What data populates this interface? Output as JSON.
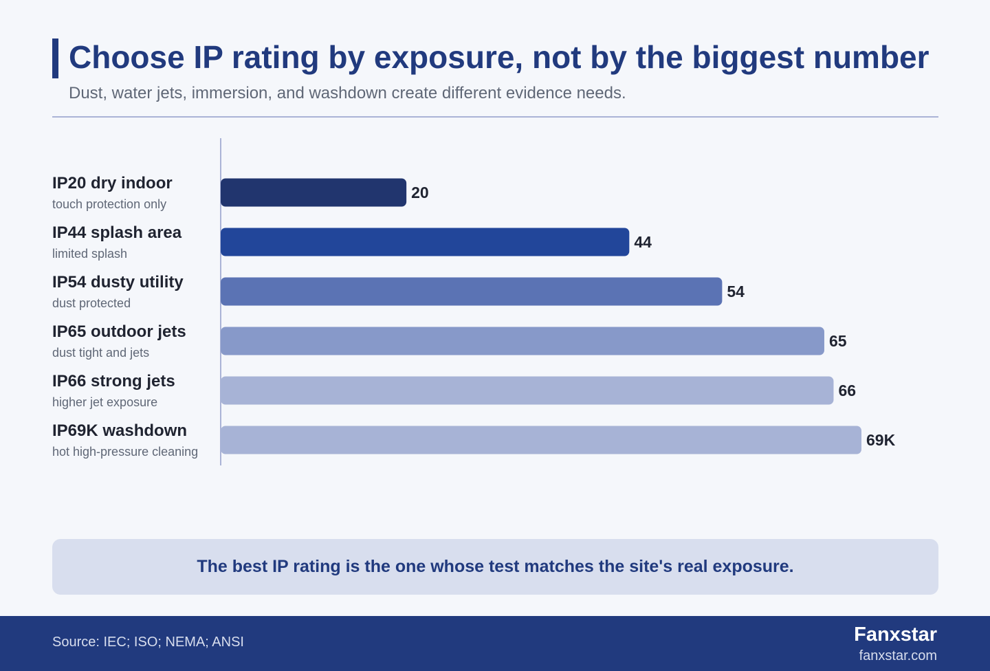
{
  "header": {
    "title": "Choose IP rating by exposure, not by the biggest number",
    "subtitle": "Dust, water jets, immersion, and washdown create different evidence needs."
  },
  "chart_data": {
    "type": "bar",
    "orientation": "horizontal",
    "categories": [
      "IP20 dry indoor",
      "IP44 splash area",
      "IP54 dusty utility",
      "IP65 outdoor jets",
      "IP66 strong jets",
      "IP69K washdown"
    ],
    "descriptions": [
      "touch protection only",
      "limited splash",
      "dust protected",
      "dust tight and jets",
      "higher jet exposure",
      "hot high-pressure cleaning"
    ],
    "values": [
      20,
      44,
      54,
      65,
      66,
      69
    ],
    "value_labels": [
      "20",
      "44",
      "54",
      "65",
      "66",
      "69K"
    ],
    "colors": [
      "#21356e",
      "#22469a",
      "#5b73b4",
      "#8799c9",
      "#a7b3d6",
      "#a7b3d6"
    ],
    "xlim": [
      0,
      69
    ],
    "grid": false,
    "title": "",
    "xlabel": "",
    "ylabel": ""
  },
  "callout": {
    "text": "The best IP rating is the one whose test matches the site's real exposure."
  },
  "footer": {
    "source": "Source: IEC; ISO; NEMA; ANSI",
    "brand": "Fanxstar",
    "url": "fanxstar.com"
  }
}
